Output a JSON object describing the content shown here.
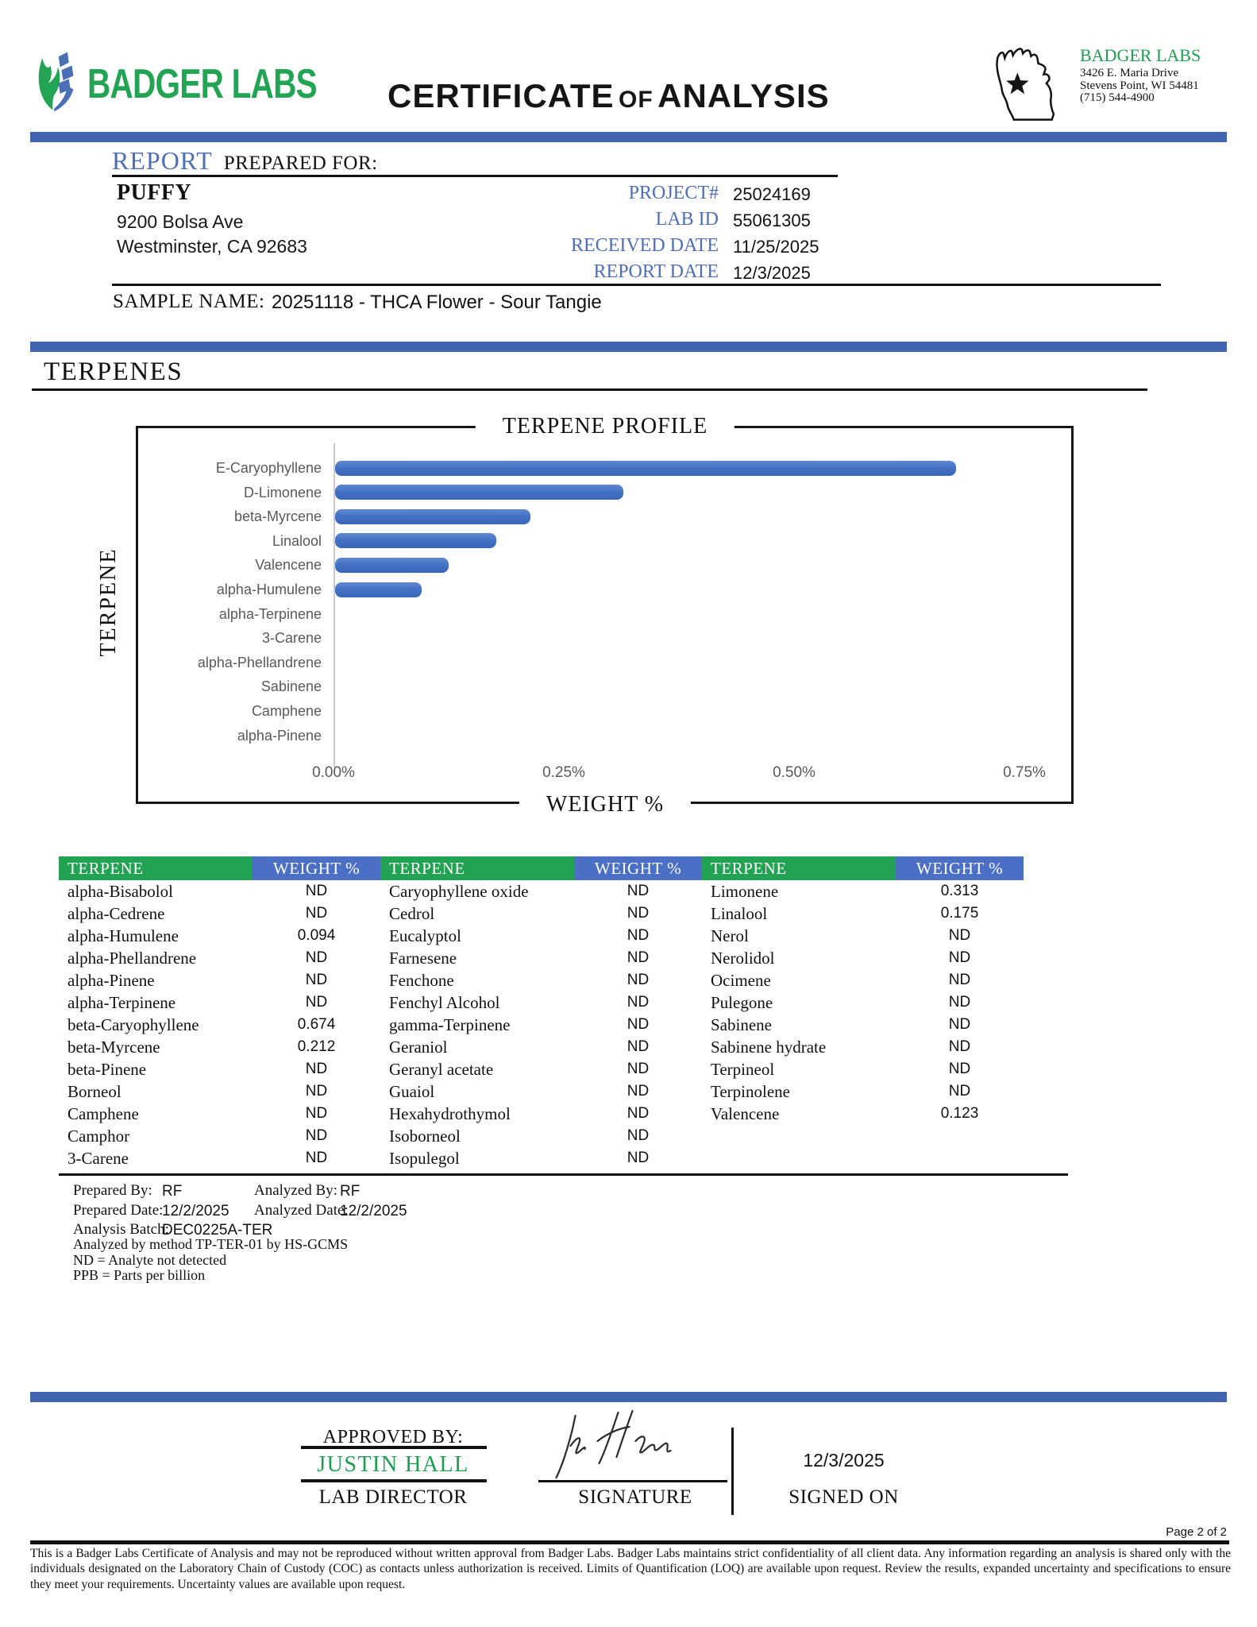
{
  "colors": {
    "bar-blue": "#4164AE",
    "label-blue": "#4E6EB5",
    "brand-green": "#23A455",
    "logo-blue": "#4A6FB5",
    "name-green": "#1D9E50",
    "table-green": "#22A353",
    "table-blue": "#4B6FC4",
    "chart-bar": "#4472C4",
    "chart-gray": "#595959"
  },
  "header": {
    "brand": "BADGER LABS",
    "title_1": "CERTIFICATE",
    "title_of": "of",
    "title_2": "ANALYSIS",
    "lab": {
      "name": "BADGER LABS",
      "addr1": "3426 E. Maria Drive",
      "addr2": "Stevens Point, WI 54481",
      "phone": "(715) 544-4900"
    }
  },
  "report": {
    "heading_report": "REPORT",
    "heading_prepared": "PREPARED FOR:",
    "client": {
      "name": "PUFFY",
      "addr1": "9200 Bolsa Ave",
      "addr2": "Westminster, CA 92683"
    },
    "meta": [
      {
        "label": "PROJECT#",
        "value": "25024169"
      },
      {
        "label": "LAB ID",
        "value": "55061305"
      },
      {
        "label": "RECEIVED DATE",
        "value": "11/25/2025"
      },
      {
        "label": "REPORT DATE",
        "value": "12/3/2025"
      }
    ],
    "sample_label": "SAMPLE NAME:",
    "sample_value": "20251118 - THCA Flower - Sour Tangie"
  },
  "section_title": "TERPENES",
  "chart_data": {
    "type": "bar",
    "orientation": "horizontal",
    "title": "TERPENE PROFILE",
    "xlabel": "WEIGHT %",
    "ylabel": "TERPENE",
    "categories": [
      "E-Caryophyllene",
      "D-Limonene",
      "beta-Myrcene",
      "Linalool",
      "Valencene",
      "alpha-Humulene",
      "alpha-Terpinene",
      "3-Carene",
      "alpha-Phellandrene",
      "Sabinene",
      "Camphene",
      "alpha-Pinene"
    ],
    "values": [
      0.674,
      0.313,
      0.212,
      0.175,
      0.123,
      0.094,
      0,
      0,
      0,
      0,
      0,
      0
    ],
    "x_ticks": [
      "0.00%",
      "0.25%",
      "0.50%",
      "0.75%"
    ],
    "xlim": [
      0,
      0.75
    ],
    "unit": "%",
    "grid": false,
    "bar_color": "#4472C4"
  },
  "table": {
    "name_header": "TERPENE",
    "weight_header": "WEIGHT %",
    "columns": [
      [
        {
          "name": "alpha-Bisabolol",
          "value": "ND"
        },
        {
          "name": "alpha-Cedrene",
          "value": "ND"
        },
        {
          "name": "alpha-Humulene",
          "value": "0.094"
        },
        {
          "name": "alpha-Phellandrene",
          "value": "ND"
        },
        {
          "name": "alpha-Pinene",
          "value": "ND"
        },
        {
          "name": "alpha-Terpinene",
          "value": "ND"
        },
        {
          "name": "beta-Caryophyllene",
          "value": "0.674"
        },
        {
          "name": "beta-Myrcene",
          "value": "0.212"
        },
        {
          "name": "beta-Pinene",
          "value": "ND"
        },
        {
          "name": "Borneol",
          "value": "ND"
        },
        {
          "name": "Camphene",
          "value": "ND"
        },
        {
          "name": "Camphor",
          "value": "ND"
        },
        {
          "name": "3-Carene",
          "value": "ND"
        }
      ],
      [
        {
          "name": "Caryophyllene oxide",
          "value": "ND"
        },
        {
          "name": "Cedrol",
          "value": "ND"
        },
        {
          "name": "Eucalyptol",
          "value": "ND"
        },
        {
          "name": "Farnesene",
          "value": "ND"
        },
        {
          "name": "Fenchone",
          "value": "ND"
        },
        {
          "name": "Fenchyl Alcohol",
          "value": "ND"
        },
        {
          "name": "gamma-Terpinene",
          "value": "ND"
        },
        {
          "name": "Geraniol",
          "value": "ND"
        },
        {
          "name": "Geranyl acetate",
          "value": "ND"
        },
        {
          "name": "Guaiol",
          "value": "ND"
        },
        {
          "name": "Hexahydrothymol",
          "value": "ND"
        },
        {
          "name": "Isoborneol",
          "value": "ND"
        },
        {
          "name": "Isopulegol",
          "value": "ND"
        }
      ],
      [
        {
          "name": "Limonene",
          "value": "0.313"
        },
        {
          "name": "Linalool",
          "value": "0.175"
        },
        {
          "name": "Nerol",
          "value": "ND"
        },
        {
          "name": "Nerolidol",
          "value": "ND"
        },
        {
          "name": "Ocimene",
          "value": "ND"
        },
        {
          "name": "Pulegone",
          "value": "ND"
        },
        {
          "name": "Sabinene",
          "value": "ND"
        },
        {
          "name": "Sabinene hydrate",
          "value": "ND"
        },
        {
          "name": "Terpineol",
          "value": "ND"
        },
        {
          "name": "Terpinolene",
          "value": "ND"
        },
        {
          "name": "Valencene",
          "value": "0.123"
        }
      ]
    ]
  },
  "analysis": {
    "prepared_by_label": "Prepared By:",
    "prepared_by": "RF",
    "analyzed_by_label": "Analyzed By:",
    "analyzed_by": "RF",
    "prepared_date_label": "Prepared Date:",
    "prepared_date": "12/2/2025",
    "analyzed_date_label": "Analyzed Date:",
    "analyzed_date": "12/2/2025",
    "batch_label": "Analysis Batch:",
    "batch": "DEC0225A-TER",
    "notes": [
      "Analyzed by method TP-TER-01 by HS-GCMS",
      "ND = Analyte not detected",
      "PPB = Parts per billion"
    ]
  },
  "approval": {
    "approved_by_label": "APPROVED BY:",
    "approver_name": "JUSTIN HALL",
    "approver_role": "LAB DIRECTOR",
    "signature_label": "SIGNATURE",
    "signed_on_label": "SIGNED ON",
    "signed_date": "12/3/2025"
  },
  "footer": {
    "page": "Page 2 of 2",
    "disclaimer": "This is a Badger Labs Certificate of Analysis and may not be reproduced without written approval from Badger Labs. Badger Labs maintains strict confidentiality of all client data. Any information regarding an analysis is shared only with the individuals designated on the Laboratory Chain of Custody (COC) as contacts unless authorization is received. Limits of Quantification (LOQ) are available upon request. Review the results, expanded uncertainty and specifications to ensure they meet your requirements. Uncertainty values are available upon request."
  }
}
